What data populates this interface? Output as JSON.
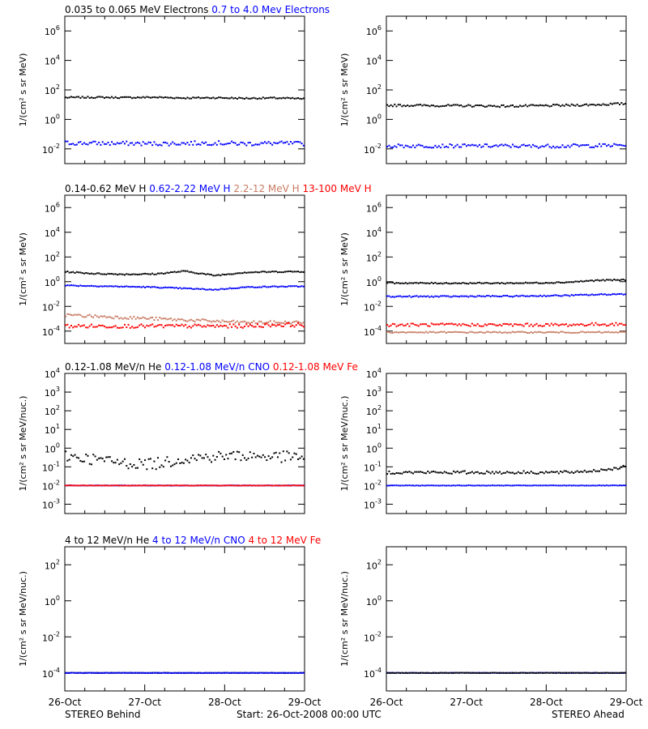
{
  "footer": {
    "left": "STEREO Behind",
    "center": "Start: 26-Oct-2008 00:00 UTC",
    "right": "STEREO Ahead"
  },
  "x_ticks": [
    "26-Oct",
    "27-Oct",
    "28-Oct",
    "29-Oct"
  ],
  "colors": {
    "black": "#000000",
    "blue": "#0000ff",
    "tan": "#c87a62",
    "red": "#ff0000"
  },
  "chart_data": [
    {
      "type": "scatter",
      "legend": [
        {
          "text": "0.035 to 0.065 MeV Electrons",
          "color": "#000000"
        },
        {
          "text": "0.7 to 4.0 Mev Electrons",
          "color": "#0000ff"
        }
      ],
      "ylabel": "1/(cm² s sr MeV)",
      "ylim_log10": [
        -3,
        7
      ],
      "y_ticks": [
        {
          "exp": -2,
          "label": "10",
          "sup": "-2"
        },
        {
          "exp": 0,
          "label": "10",
          "sup": "0"
        },
        {
          "exp": 2,
          "label": "10",
          "sup": "2"
        },
        {
          "exp": 4,
          "label": "10",
          "sup": "4"
        },
        {
          "exp": 6,
          "label": "10",
          "sup": "6"
        }
      ],
      "xlim_days": [
        0,
        3
      ],
      "panels": [
        {
          "side": "STEREO Behind",
          "series": [
            {
              "color": "#000000",
              "values": [
                1.48,
                1.5,
                1.48,
                1.5,
                1.45,
                1.47,
                1.43,
                1.45,
                1.4
              ],
              "spread": 0.05
            },
            {
              "color": "#0000ff",
              "values": [
                -1.6,
                -1.62,
                -1.63,
                -1.65,
                -1.62,
                -1.6,
                -1.65,
                -1.62,
                -1.65
              ],
              "spread": 0.14
            }
          ]
        },
        {
          "side": "STEREO Ahead",
          "series": [
            {
              "color": "#000000",
              "values": [
                0.95,
                0.95,
                0.93,
                0.92,
                0.9,
                0.92,
                0.95,
                1.0,
                1.07
              ],
              "spread": 0.07
            },
            {
              "color": "#0000ff",
              "values": [
                -1.8,
                -1.8,
                -1.8,
                -1.8,
                -1.8,
                -1.82,
                -1.8,
                -1.78,
                -1.75
              ],
              "spread": 0.12
            }
          ]
        }
      ]
    },
    {
      "type": "scatter",
      "legend": [
        {
          "text": "0.14-0.62 MeV H",
          "color": "#000000"
        },
        {
          "text": "0.62-2.22 MeV H",
          "color": "#0000ff"
        },
        {
          "text": "2.2-12 MeV H",
          "color": "#c87a62"
        },
        {
          "text": "13-100 MeV H",
          "color": "#ff0000"
        }
      ],
      "ylabel": "1/(cm² s sr MeV)",
      "ylim_log10": [
        -5,
        7
      ],
      "y_ticks": [
        {
          "exp": -4,
          "label": "10",
          "sup": "-4"
        },
        {
          "exp": -2,
          "label": "10",
          "sup": "-2"
        },
        {
          "exp": 0,
          "label": "10",
          "sup": "0"
        },
        {
          "exp": 2,
          "label": "10",
          "sup": "2"
        },
        {
          "exp": 4,
          "label": "10",
          "sup": "4"
        },
        {
          "exp": 6,
          "label": "10",
          "sup": "6"
        }
      ],
      "xlim_days": [
        0,
        3
      ],
      "panels": [
        {
          "side": "STEREO Behind",
          "series": [
            {
              "color": "#000000",
              "values": [
                0.8,
                0.65,
                0.6,
                0.62,
                0.85,
                0.5,
                0.75,
                0.8,
                0.82
              ],
              "spread": 0.05
            },
            {
              "color": "#0000ff",
              "values": [
                -0.3,
                -0.35,
                -0.4,
                -0.45,
                -0.55,
                -0.65,
                -0.45,
                -0.4,
                -0.38
              ],
              "spread": 0.04
            },
            {
              "color": "#c87a62",
              "values": [
                -2.7,
                -2.8,
                -2.9,
                -3.0,
                -3.1,
                -3.2,
                -3.3,
                -3.3,
                -3.3
              ],
              "spread": 0.12
            },
            {
              "color": "#ff0000",
              "values": [
                -3.6,
                -3.6,
                -3.6,
                -3.6,
                -3.6,
                -3.6,
                -3.6,
                -3.5,
                -3.5
              ],
              "spread": 0.15
            }
          ]
        },
        {
          "side": "STEREO Ahead",
          "series": [
            {
              "color": "#000000",
              "values": [
                -0.1,
                -0.12,
                -0.12,
                -0.12,
                -0.12,
                -0.1,
                -0.05,
                0.1,
                0.15
              ],
              "spread": 0.05
            },
            {
              "color": "#0000ff",
              "values": [
                -1.2,
                -1.2,
                -1.2,
                -1.18,
                -1.18,
                -1.15,
                -1.12,
                -1.05,
                -1.0
              ],
              "spread": 0.05
            },
            {
              "color": "#ff0000",
              "values": [
                -3.5,
                -3.5,
                -3.5,
                -3.5,
                -3.5,
                -3.5,
                -3.5,
                -3.45,
                -3.45
              ],
              "spread": 0.12
            },
            {
              "color": "#c87a62",
              "values": [
                -4.1,
                -4.1,
                -4.1,
                -4.1,
                -4.1,
                -4.1,
                -4.1,
                -4.1,
                -4.1
              ],
              "spread": 0.05
            }
          ]
        }
      ]
    },
    {
      "type": "scatter",
      "legend": [
        {
          "text": "0.12-1.08 MeV/n He",
          "color": "#000000"
        },
        {
          "text": "0.12-1.08 MeV/n CNO",
          "color": "#0000ff"
        },
        {
          "text": "0.12-1.08 MeV Fe",
          "color": "#ff0000"
        }
      ],
      "ylabel": "1/(cm² s sr MeV/nuc.)",
      "ylim_log10": [
        -3.5,
        4
      ],
      "y_ticks": [
        {
          "exp": -3,
          "label": "10",
          "sup": "-3"
        },
        {
          "exp": -2,
          "label": "10",
          "sup": "-2"
        },
        {
          "exp": -1,
          "label": "10",
          "sup": "-1"
        },
        {
          "exp": 0,
          "label": "10",
          "sup": "0"
        },
        {
          "exp": 1,
          "label": "10",
          "sup": "1"
        },
        {
          "exp": 2,
          "label": "10",
          "sup": "2"
        },
        {
          "exp": 3,
          "label": "10",
          "sup": "3"
        },
        {
          "exp": 4,
          "label": "10",
          "sup": "4"
        }
      ],
      "xlim_days": [
        0,
        3
      ],
      "panels": [
        {
          "side": "STEREO Behind",
          "series": [
            {
              "color": "#000000",
              "values": [
                -0.4,
                -0.6,
                -0.8,
                -0.85,
                -0.55,
                -0.45,
                -0.4,
                -0.45,
                -0.5
              ],
              "spread": 0.3
            },
            {
              "color": "#0000ff",
              "values": [
                -2.0,
                -2.0,
                -2.0,
                -2.0,
                -2.0,
                -2.0,
                -2.0,
                -2.0,
                -2.0
              ],
              "spread": 0.01
            },
            {
              "color": "#ff0000",
              "values": [
                -2.0,
                -2.0,
                -2.0,
                -2.0,
                -2.0,
                -2.0,
                -2.0,
                -2.0,
                -2.0
              ],
              "spread": 0.01
            }
          ]
        },
        {
          "side": "STEREO Ahead",
          "series": [
            {
              "color": "#000000",
              "values": [
                -1.3,
                -1.3,
                -1.3,
                -1.3,
                -1.3,
                -1.3,
                -1.3,
                -1.2,
                -1.0
              ],
              "spread": 0.08
            },
            {
              "color": "#0000ff",
              "values": [
                -2.0,
                -2.0,
                -2.0,
                -2.0,
                -2.0,
                -2.0,
                -2.0,
                -2.0,
                -2.0
              ],
              "spread": 0.01
            }
          ]
        }
      ]
    },
    {
      "type": "scatter",
      "legend": [
        {
          "text": "4 to 12 MeV/n He",
          "color": "#000000"
        },
        {
          "text": "4 to 12 MeV/n CNO",
          "color": "#0000ff"
        },
        {
          "text": "4 to 12 MeV Fe",
          "color": "#ff0000"
        }
      ],
      "ylabel": "1/(cm² s sr MeV/nuc.)",
      "ylim_log10": [
        -5,
        3
      ],
      "y_ticks": [
        {
          "exp": -4,
          "label": "10",
          "sup": "-4"
        },
        {
          "exp": -2,
          "label": "10",
          "sup": "-2"
        },
        {
          "exp": 0,
          "label": "10",
          "sup": "0"
        },
        {
          "exp": 2,
          "label": "10",
          "sup": "2"
        }
      ],
      "xlim_days": [
        0,
        3
      ],
      "panels": [
        {
          "side": "STEREO Behind",
          "series": [
            {
              "color": "#000000",
              "values": [
                -4.0,
                -4.0,
                -4.0,
                -4.0,
                -4.0,
                -4.0,
                -4.0,
                -4.0,
                -4.0
              ],
              "spread": 0.01
            },
            {
              "color": "#0000ff",
              "values": [
                -4.0,
                -4.0,
                -4.0,
                -4.0,
                -4.0,
                -4.0,
                -4.0,
                -4.0,
                -4.0
              ],
              "spread": 0.01
            }
          ]
        },
        {
          "side": "STEREO Ahead",
          "series": [
            {
              "color": "#0000ff",
              "values": [
                -4.0,
                -4.0,
                -4.0,
                -4.0,
                -4.0,
                -4.0,
                -4.0,
                -4.0,
                -4.0
              ],
              "spread": 0.01
            },
            {
              "color": "#000000",
              "values": [
                -4.0,
                -4.0,
                -4.0,
                -4.0,
                -4.0,
                -4.0,
                -4.0,
                -4.0,
                -4.0
              ],
              "spread": 0.01
            }
          ]
        }
      ]
    }
  ]
}
